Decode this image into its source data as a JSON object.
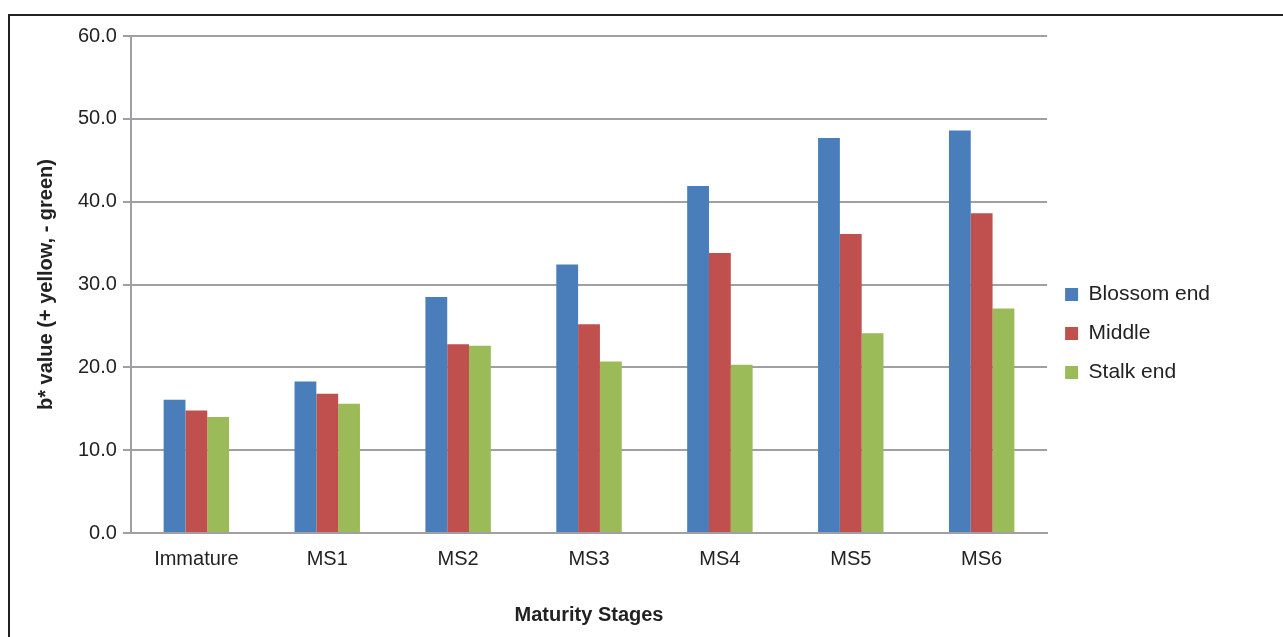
{
  "chart_data": {
    "type": "bar",
    "xlabel": "Maturity Stages",
    "ylabel": "b* value (+ yellow, - green)",
    "categories": [
      "Immature",
      "MS1",
      "MS2",
      "MS3",
      "MS4",
      "MS5",
      "MS6"
    ],
    "series": [
      {
        "name": "Blossom end",
        "color": "#4a7ebb",
        "values": [
          16.1,
          18.3,
          28.5,
          32.4,
          41.9,
          47.7,
          48.6
        ]
      },
      {
        "name": "Middle",
        "color": "#c0504d",
        "values": [
          14.8,
          16.8,
          22.8,
          25.2,
          33.8,
          36.1,
          38.6
        ]
      },
      {
        "name": "Stalk end",
        "color": "#9bbb59",
        "values": [
          14.0,
          15.6,
          22.6,
          20.7,
          20.3,
          24.1,
          27.1
        ]
      }
    ],
    "ylim": [
      0,
      60
    ],
    "yticks": [
      {
        "value": 0,
        "label": "0.0"
      },
      {
        "value": 10,
        "label": "10.0"
      },
      {
        "value": 20,
        "label": "20.0"
      },
      {
        "value": 30,
        "label": "30.0"
      },
      {
        "value": 40,
        "label": "40.0"
      },
      {
        "value": 50,
        "label": "50.0"
      },
      {
        "value": 60,
        "label": "60.0"
      }
    ],
    "grid": "y",
    "legend": "right"
  }
}
